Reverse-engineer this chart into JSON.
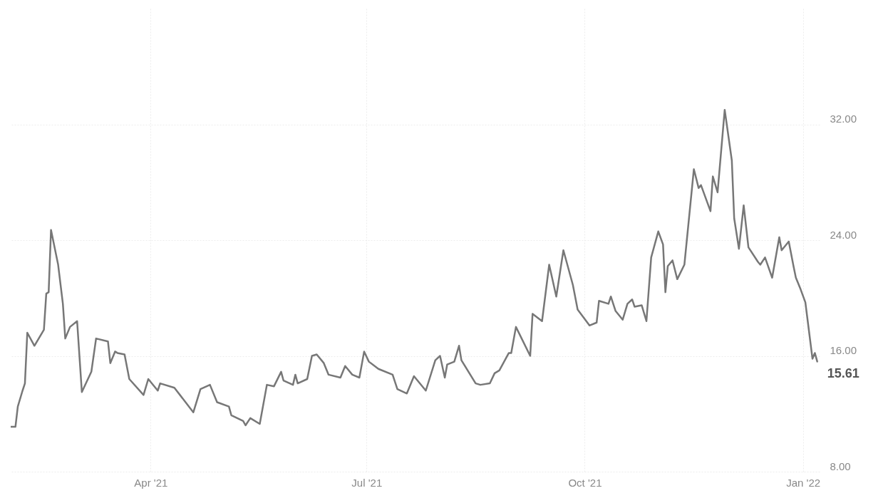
{
  "chart_data": {
    "type": "line",
    "x": [
      "2021-02-01",
      "2021-02-03",
      "2021-02-04",
      "2021-02-06",
      "2021-02-07",
      "2021-02-08",
      "2021-02-11",
      "2021-02-15",
      "2021-02-16",
      "2021-02-17",
      "2021-02-18",
      "2021-02-21",
      "2021-02-23",
      "2021-02-24",
      "2021-02-26",
      "2021-03-01",
      "2021-03-03",
      "2021-03-07",
      "2021-03-09",
      "2021-03-14",
      "2021-03-15",
      "2021-03-17",
      "2021-03-18",
      "2021-03-21",
      "2021-03-23",
      "2021-03-29",
      "2021-03-31",
      "2021-04-04",
      "2021-04-05",
      "2021-04-11",
      "2021-04-19",
      "2021-04-22",
      "2021-04-26",
      "2021-04-29",
      "2021-05-04",
      "2021-05-05",
      "2021-05-10",
      "2021-05-11",
      "2021-05-13",
      "2021-05-17",
      "2021-05-20",
      "2021-05-23",
      "2021-05-26",
      "2021-05-27",
      "2021-05-31",
      "2021-06-01",
      "2021-06-02",
      "2021-06-06",
      "2021-06-08",
      "2021-06-10",
      "2021-06-13",
      "2021-06-15",
      "2021-06-20",
      "2021-06-22",
      "2021-06-25",
      "2021-06-28",
      "2021-06-30",
      "2021-07-02",
      "2021-07-06",
      "2021-07-12",
      "2021-07-14",
      "2021-07-18",
      "2021-07-21",
      "2021-07-26",
      "2021-07-30",
      "2021-08-01",
      "2021-08-03",
      "2021-08-04",
      "2021-08-07",
      "2021-08-09",
      "2021-08-10",
      "2021-08-16",
      "2021-08-18",
      "2021-08-22",
      "2021-08-24",
      "2021-08-26",
      "2021-08-30",
      "2021-08-31",
      "2021-09-02",
      "2021-09-08",
      "2021-09-09",
      "2021-09-13",
      "2021-09-16",
      "2021-09-19",
      "2021-09-22",
      "2021-09-26",
      "2021-09-28",
      "2021-10-03",
      "2021-10-06",
      "2021-10-07",
      "2021-10-11",
      "2021-10-12",
      "2021-10-14",
      "2021-10-17",
      "2021-10-19",
      "2021-10-21",
      "2021-10-22",
      "2021-10-25",
      "2021-10-27",
      "2021-10-29",
      "2021-11-01",
      "2021-11-03",
      "2021-11-04",
      "2021-11-05",
      "2021-11-07",
      "2021-11-09",
      "2021-11-12",
      "2021-11-16",
      "2021-11-18",
      "2021-11-19",
      "2021-11-23",
      "2021-11-24",
      "2021-11-26",
      "2021-11-29",
      "2021-12-02",
      "2021-12-03",
      "2021-12-05",
      "2021-12-07",
      "2021-12-09",
      "2021-12-13",
      "2021-12-14",
      "2021-12-16",
      "2021-12-19",
      "2021-12-22",
      "2021-12-23",
      "2021-12-26",
      "2021-12-28",
      "2021-12-29",
      "2021-12-31",
      "2022-01-02",
      "2022-01-03",
      "2022-01-05",
      "2022-01-06",
      "2022-01-07"
    ],
    "series": [
      {
        "color": "#777777",
        "values": [
          11.1,
          11.1,
          12.5,
          13.6,
          14.1,
          17.6,
          16.7,
          17.8,
          20.3,
          20.4,
          24.7,
          22.3,
          19.6,
          17.2,
          18.0,
          18.4,
          13.5,
          14.9,
          17.2,
          17.0,
          15.5,
          16.3,
          16.2,
          16.1,
          14.4,
          13.3,
          14.4,
          13.6,
          14.1,
          13.8,
          12.1,
          13.7,
          14.0,
          12.8,
          12.5,
          11.9,
          11.5,
          11.2,
          11.7,
          11.3,
          14.0,
          13.9,
          14.9,
          14.3,
          14.0,
          14.7,
          14.1,
          14.4,
          16.0,
          16.1,
          15.5,
          14.7,
          14.5,
          15.3,
          14.7,
          14.5,
          16.3,
          15.6,
          15.1,
          14.7,
          13.7,
          13.4,
          14.6,
          13.6,
          15.7,
          16.0,
          14.5,
          15.4,
          15.6,
          16.7,
          15.7,
          14.1,
          14.0,
          14.1,
          14.8,
          15.0,
          16.2,
          16.2,
          18.0,
          16.0,
          18.9,
          18.4,
          22.3,
          20.1,
          23.3,
          20.9,
          19.2,
          18.1,
          18.3,
          19.8,
          19.6,
          20.1,
          19.1,
          18.5,
          19.6,
          19.9,
          19.4,
          19.5,
          18.4,
          22.8,
          24.6,
          23.7,
          20.4,
          22.2,
          22.6,
          21.3,
          22.3,
          28.9,
          27.6,
          27.8,
          26.0,
          28.4,
          27.3,
          33.0,
          29.5,
          25.5,
          23.4,
          26.4,
          23.5,
          22.5,
          22.3,
          22.8,
          21.4,
          24.2,
          23.3,
          23.9,
          22.2,
          21.4,
          20.6,
          19.7,
          18.4,
          15.8,
          16.2,
          15.61
        ]
      }
    ],
    "xlim": [
      "2021-02-01",
      "2022-01-08"
    ],
    "xticks": [
      {
        "value": "2021-04-01",
        "label": "Apr '21"
      },
      {
        "value": "2021-07-01",
        "label": "Jul '21"
      },
      {
        "value": "2021-10-01",
        "label": "Oct '21"
      },
      {
        "value": "2022-01-01",
        "label": "Jan '22"
      }
    ],
    "ylim": [
      8,
      40
    ],
    "yticks": [
      {
        "value": 8,
        "label": "8.00"
      },
      {
        "value": 16,
        "label": "16.00"
      },
      {
        "value": 24,
        "label": "24.00"
      },
      {
        "value": 32,
        "label": "32.00"
      }
    ],
    "grid": true,
    "annotations": [
      {
        "text": "15.61",
        "x": "2022-01-07",
        "y": 15.61
      }
    ]
  }
}
